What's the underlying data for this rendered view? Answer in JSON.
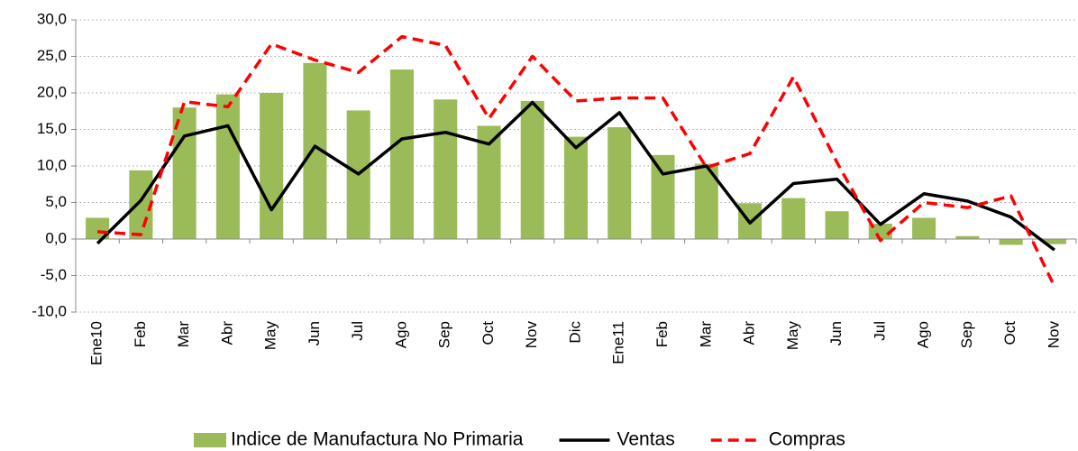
{
  "chart_data": {
    "type": "bar-line",
    "categories": [
      "Ene10",
      "Feb",
      "Mar",
      "Abr",
      "May",
      "Jun",
      "Jul",
      "Ago",
      "Sep",
      "Oct",
      "Nov",
      "Dic",
      "Ene11",
      "Feb",
      "Mar",
      "Abr",
      "May",
      "Jun",
      "Jul",
      "Ago",
      "Sep",
      "Oct",
      "Nov"
    ],
    "series": [
      {
        "name": "Indice de Manufactura No Primaria",
        "type": "bar",
        "color": "#9bbb59",
        "values": [
          2.9,
          9.4,
          18.0,
          19.8,
          20.0,
          24.1,
          17.6,
          23.2,
          19.1,
          15.5,
          18.9,
          14.0,
          15.3,
          11.5,
          10.3,
          4.9,
          5.6,
          3.8,
          2.1,
          2.9,
          0.4,
          -0.8,
          -0.7
        ]
      },
      {
        "name": "Ventas",
        "type": "line",
        "color": "#000000",
        "dash": "solid",
        "values": [
          -0.6,
          5.3,
          14.1,
          15.5,
          4.0,
          12.7,
          8.9,
          13.7,
          14.6,
          13.0,
          18.7,
          12.5,
          17.3,
          8.9,
          10.0,
          2.2,
          7.6,
          8.2,
          2.0,
          6.2,
          5.2,
          3.0,
          -1.5
        ]
      },
      {
        "name": "Compras",
        "type": "line",
        "color": "#ff0000",
        "dash": "dashed",
        "values": [
          1.0,
          0.6,
          18.8,
          18.1,
          26.7,
          24.5,
          22.8,
          27.7,
          26.5,
          16.5,
          25.0,
          18.9,
          19.3,
          19.3,
          9.8,
          11.7,
          22.2,
          10.5,
          -0.2,
          5.0,
          4.3,
          5.9,
          -6.5
        ]
      }
    ],
    "ylim": [
      -10,
      30
    ],
    "yticks": [
      {
        "value": -10,
        "label": "-10,0"
      },
      {
        "value": -5,
        "label": "-5,0"
      },
      {
        "value": 0,
        "label": "0,0"
      },
      {
        "value": 5,
        "label": "5,0"
      },
      {
        "value": 10,
        "label": "10,0"
      },
      {
        "value": 15,
        "label": "15,0"
      },
      {
        "value": 20,
        "label": "20,0"
      },
      {
        "value": 25,
        "label": "25,0"
      },
      {
        "value": 30,
        "label": "30,0"
      }
    ],
    "grid": true,
    "legend": "bottom"
  }
}
